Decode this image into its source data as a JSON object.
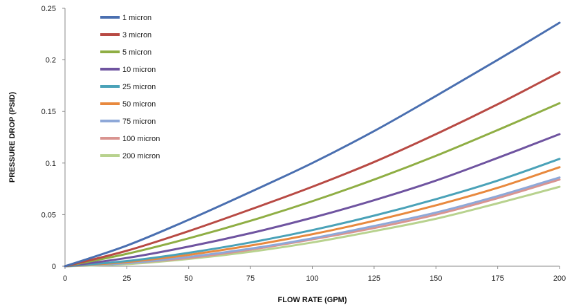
{
  "chart_data": {
    "type": "line",
    "title": "",
    "xlabel": "FLOW RATE (GPM)",
    "ylabel": "PRESSURE DROP (PSID)",
    "xlim": [
      0,
      200
    ],
    "ylim": [
      0,
      0.25
    ],
    "x_ticks": [
      0,
      25,
      50,
      75,
      100,
      125,
      150,
      175,
      200
    ],
    "y_ticks": [
      0,
      0.05,
      0.1,
      0.15,
      0.2,
      0.25
    ],
    "x_tick_labels": [
      "0",
      "25",
      "50",
      "75",
      "100",
      "125",
      "150",
      "175",
      "200"
    ],
    "y_tick_labels": [
      "0",
      "0.05",
      "0.1",
      "0.15",
      "0.2",
      "0.25"
    ],
    "grid": false,
    "legend_position": "top-left",
    "x": [
      0,
      25,
      50,
      75,
      100,
      125,
      150,
      175,
      200
    ],
    "series": [
      {
        "name": "1 micron",
        "color": "#4a6fb0",
        "values": [
          0,
          0.02,
          0.045,
          0.072,
          0.1,
          0.131,
          0.165,
          0.2,
          0.236
        ]
      },
      {
        "name": "3 micron",
        "color": "#b84a44",
        "values": [
          0,
          0.015,
          0.034,
          0.055,
          0.077,
          0.101,
          0.128,
          0.157,
          0.188
        ]
      },
      {
        "name": "5 micron",
        "color": "#8fae44",
        "values": [
          0,
          0.012,
          0.027,
          0.044,
          0.063,
          0.084,
          0.107,
          0.132,
          0.158
        ]
      },
      {
        "name": "10 micron",
        "color": "#6f54a0",
        "values": [
          0,
          0.008,
          0.019,
          0.032,
          0.047,
          0.064,
          0.083,
          0.105,
          0.128
        ]
      },
      {
        "name": "25 micron",
        "color": "#4aa2b8",
        "values": [
          0,
          0.005,
          0.013,
          0.023,
          0.035,
          0.049,
          0.065,
          0.083,
          0.104
        ]
      },
      {
        "name": "50 micron",
        "color": "#e8893e",
        "values": [
          0,
          0.004,
          0.011,
          0.02,
          0.031,
          0.044,
          0.059,
          0.076,
          0.096
        ]
      },
      {
        "name": "75 micron",
        "color": "#8ea8d8",
        "values": [
          0,
          0.003,
          0.009,
          0.017,
          0.027,
          0.039,
          0.052,
          0.068,
          0.086
        ]
      },
      {
        "name": "100 micron",
        "color": "#d99490",
        "values": [
          0,
          0.003,
          0.008,
          0.016,
          0.026,
          0.037,
          0.05,
          0.066,
          0.084
        ]
      },
      {
        "name": "200 micron",
        "color": "#b8d28e",
        "values": [
          0,
          0.002,
          0.007,
          0.014,
          0.023,
          0.034,
          0.046,
          0.061,
          0.077
        ]
      }
    ]
  }
}
